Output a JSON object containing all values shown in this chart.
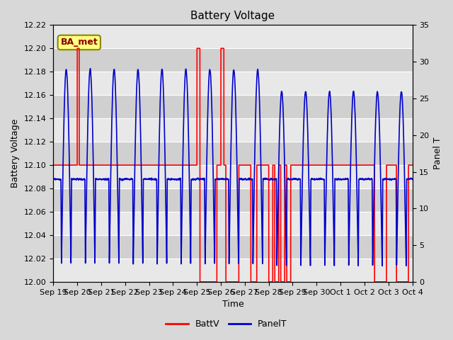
{
  "title": "Battery Voltage",
  "xlabel": "Time",
  "ylabel_left": "Battery Voltage",
  "ylabel_right": "Panel T",
  "ylim_left": [
    12.0,
    12.22
  ],
  "ylim_right": [
    0,
    35
  ],
  "yticks_left": [
    12.0,
    12.02,
    12.04,
    12.06,
    12.08,
    12.1,
    12.12,
    12.14,
    12.16,
    12.18,
    12.2,
    12.22
  ],
  "yticks_right": [
    0,
    5,
    10,
    15,
    20,
    25,
    30,
    35
  ],
  "bg_color": "#d8d8d8",
  "plot_bg_color_light": "#e8e8e8",
  "plot_bg_color_dark": "#d0d0d0",
  "batt_color": "#ff0000",
  "panel_color": "#0000cc",
  "annotation_text": "BA_met",
  "annotation_bg": "#ffff80",
  "annotation_border": "#888800",
  "legend_batt": "BattV",
  "legend_panel": "PanelT",
  "title_fontsize": 11,
  "axis_fontsize": 9,
  "tick_fontsize": 8
}
